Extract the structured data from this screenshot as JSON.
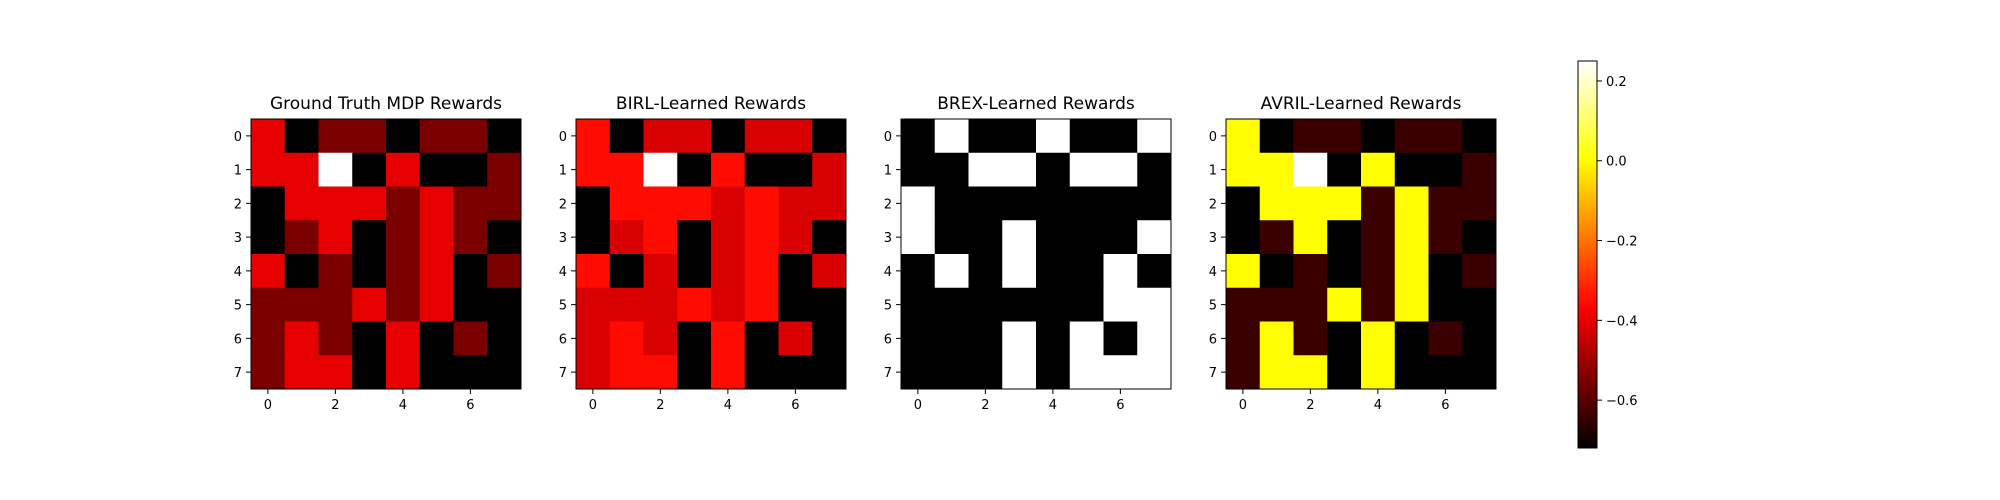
{
  "chart_data": [
    {
      "type": "heatmap",
      "title": "Ground Truth MDP Rewards",
      "xticks": [
        "0",
        "2",
        "4",
        "6"
      ],
      "yticks": [
        "0",
        "1",
        "2",
        "3",
        "4",
        "5",
        "6",
        "7"
      ],
      "values": [
        [
          -0.4,
          -0.72,
          -0.55,
          -0.55,
          -0.72,
          -0.55,
          -0.55,
          -0.72
        ],
        [
          -0.4,
          -0.4,
          0.25,
          -0.72,
          -0.4,
          -0.72,
          -0.72,
          -0.55
        ],
        [
          -0.72,
          -0.4,
          -0.4,
          -0.4,
          -0.55,
          -0.4,
          -0.55,
          -0.55
        ],
        [
          -0.72,
          -0.55,
          -0.4,
          -0.72,
          -0.55,
          -0.4,
          -0.55,
          -0.72
        ],
        [
          -0.4,
          -0.72,
          -0.55,
          -0.72,
          -0.55,
          -0.4,
          -0.72,
          -0.55
        ],
        [
          -0.55,
          -0.55,
          -0.55,
          -0.4,
          -0.55,
          -0.4,
          -0.72,
          -0.72
        ],
        [
          -0.55,
          -0.4,
          -0.55,
          -0.72,
          -0.4,
          -0.72,
          -0.55,
          -0.72
        ],
        [
          -0.55,
          -0.4,
          -0.4,
          -0.72,
          -0.4,
          -0.72,
          -0.72,
          -0.72
        ]
      ]
    },
    {
      "type": "heatmap",
      "title": "BIRL-Learned Rewards",
      "xticks": [
        "0",
        "2",
        "4",
        "6"
      ],
      "yticks": [
        "0",
        "1",
        "2",
        "3",
        "4",
        "5",
        "6",
        "7"
      ],
      "values": [
        [
          -0.35,
          -0.72,
          -0.42,
          -0.42,
          -0.72,
          -0.42,
          -0.42,
          -0.72
        ],
        [
          -0.35,
          -0.35,
          0.25,
          -0.72,
          -0.35,
          -0.72,
          -0.72,
          -0.42
        ],
        [
          -0.72,
          -0.35,
          -0.35,
          -0.35,
          -0.42,
          -0.35,
          -0.42,
          -0.42
        ],
        [
          -0.72,
          -0.42,
          -0.35,
          -0.72,
          -0.42,
          -0.35,
          -0.42,
          -0.72
        ],
        [
          -0.35,
          -0.72,
          -0.42,
          -0.72,
          -0.42,
          -0.35,
          -0.72,
          -0.42
        ],
        [
          -0.42,
          -0.42,
          -0.42,
          -0.35,
          -0.42,
          -0.35,
          -0.72,
          -0.72
        ],
        [
          -0.42,
          -0.35,
          -0.42,
          -0.72,
          -0.35,
          -0.72,
          -0.42,
          -0.72
        ],
        [
          -0.42,
          -0.35,
          -0.35,
          -0.72,
          -0.35,
          -0.72,
          -0.72,
          -0.72
        ]
      ]
    },
    {
      "type": "heatmap",
      "title": "BREX-Learned Rewards",
      "xticks": [
        "0",
        "2",
        "4",
        "6"
      ],
      "yticks": [
        "0",
        "1",
        "2",
        "3",
        "4",
        "5",
        "6",
        "7"
      ],
      "values": [
        [
          -0.72,
          0.25,
          -0.72,
          -0.72,
          0.25,
          -0.72,
          -0.72,
          0.25
        ],
        [
          -0.72,
          -0.72,
          0.25,
          0.25,
          -0.72,
          0.25,
          0.25,
          -0.72
        ],
        [
          0.25,
          -0.72,
          -0.72,
          -0.72,
          -0.72,
          -0.72,
          -0.72,
          -0.72
        ],
        [
          0.25,
          -0.72,
          -0.72,
          0.25,
          -0.72,
          -0.72,
          -0.72,
          0.25
        ],
        [
          -0.72,
          0.25,
          -0.72,
          0.25,
          -0.72,
          -0.72,
          0.25,
          -0.72
        ],
        [
          -0.72,
          -0.72,
          -0.72,
          -0.72,
          -0.72,
          -0.72,
          0.25,
          0.25
        ],
        [
          -0.72,
          -0.72,
          -0.72,
          0.25,
          -0.72,
          0.25,
          -0.72,
          0.25
        ],
        [
          -0.72,
          -0.72,
          -0.72,
          0.25,
          -0.72,
          0.25,
          0.25,
          0.25
        ]
      ]
    },
    {
      "type": "heatmap",
      "title": "AVRIL-Learned Rewards",
      "xticks": [
        "0",
        "2",
        "4",
        "6"
      ],
      "yticks": [
        "0",
        "1",
        "2",
        "3",
        "4",
        "5",
        "6",
        "7"
      ],
      "values": [
        [
          0.0,
          -0.72,
          -0.64,
          -0.64,
          -0.72,
          -0.64,
          -0.64,
          -0.72
        ],
        [
          0.0,
          0.0,
          0.25,
          -0.72,
          0.0,
          -0.72,
          -0.72,
          -0.64
        ],
        [
          -0.72,
          0.0,
          0.0,
          0.0,
          -0.64,
          0.0,
          -0.64,
          -0.64
        ],
        [
          -0.72,
          -0.64,
          0.0,
          -0.72,
          -0.64,
          0.0,
          -0.64,
          -0.72
        ],
        [
          0.0,
          -0.72,
          -0.64,
          -0.72,
          -0.64,
          0.0,
          -0.72,
          -0.64
        ],
        [
          -0.64,
          -0.64,
          -0.64,
          0.0,
          -0.64,
          0.0,
          -0.72,
          -0.72
        ],
        [
          -0.64,
          0.0,
          -0.64,
          -0.72,
          0.0,
          -0.72,
          -0.64,
          -0.72
        ],
        [
          -0.64,
          0.0,
          0.0,
          -0.72,
          0.0,
          -0.72,
          -0.72,
          -0.72
        ]
      ]
    }
  ],
  "colorbar": {
    "colormap": "hot",
    "vmin": -0.72,
    "vmax": 0.25,
    "ticks": [
      {
        "value": 0.2,
        "label": "0.2"
      },
      {
        "value": 0.0,
        "label": "0.0"
      },
      {
        "value": -0.2,
        "label": "−0.2"
      },
      {
        "value": -0.4,
        "label": "−0.4"
      },
      {
        "value": -0.6,
        "label": "−0.6"
      }
    ]
  }
}
